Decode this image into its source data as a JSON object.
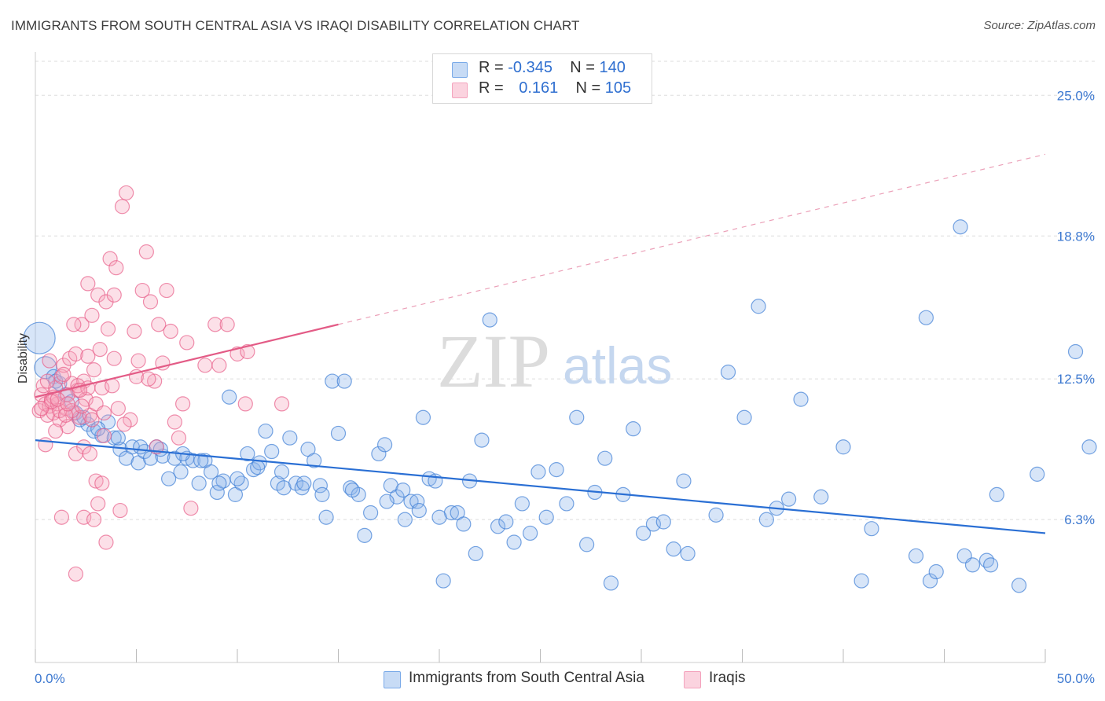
{
  "header": {
    "title": "IMMIGRANTS FROM SOUTH CENTRAL ASIA VS IRAQI DISABILITY CORRELATION CHART",
    "source": "Source: ZipAtlas.com"
  },
  "watermark": {
    "zip": "ZIP",
    "atlas": "atlas"
  },
  "legend": {
    "rows": [
      {
        "r_label": "R = ",
        "r_value": "-0.345",
        "n_label": "N = ",
        "n_value": "140",
        "color": "#7aaae8"
      },
      {
        "r_label": "R = ",
        "r_value": "0.161",
        "n_label": "N = ",
        "n_value": "105",
        "color": "#f4a3bd"
      }
    ]
  },
  "bottom_legend": [
    {
      "label": "Immigrants from South Central Asia",
      "color": "#a8c6f0"
    },
    {
      "label": "Iraqis",
      "color": "#f7bfd0"
    }
  ],
  "chart_data": {
    "type": "scatter",
    "title": "IMMIGRANTS FROM SOUTH CENTRAL ASIA VS IRAQI DISABILITY CORRELATION CHART",
    "xlabel": "",
    "ylabel": "Disability",
    "xlim": [
      0,
      50
    ],
    "ylim": [
      0,
      26.5
    ],
    "x_tick_labels": [
      "0.0%",
      "50.0%"
    ],
    "y_ticks": [
      6.3,
      12.5,
      18.8,
      25.0
    ],
    "y_tick_labels": [
      "6.3%",
      "12.5%",
      "18.8%",
      "25.0%"
    ],
    "grid": true,
    "legend_position": "top-center",
    "series": [
      {
        "name": "Immigrants from South Central Asia",
        "color": "#3f7fd6",
        "fill": "rgba(140,180,235,0.35)",
        "trend": {
          "x0": 0,
          "y0": 9.8,
          "x1": 50,
          "y1": 5.7,
          "dashed_from": null
        },
        "points": [
          [
            0.2,
            14.3
          ],
          [
            0.5,
            13.0
          ],
          [
            0.9,
            12.6
          ],
          [
            1.2,
            12.3
          ],
          [
            1.5,
            11.8
          ],
          [
            1.8,
            11.5
          ],
          [
            2.0,
            11.0
          ],
          [
            2.2,
            10.7
          ],
          [
            2.6,
            10.5
          ],
          [
            2.9,
            10.2
          ],
          [
            3.3,
            10.0
          ],
          [
            3.6,
            10.6
          ],
          [
            3.9,
            9.9
          ],
          [
            4.2,
            9.4
          ],
          [
            4.5,
            9.0
          ],
          [
            4.8,
            9.5
          ],
          [
            5.1,
            8.8
          ],
          [
            5.4,
            9.3
          ],
          [
            5.7,
            9.0
          ],
          [
            6.0,
            9.5
          ],
          [
            6.3,
            9.1
          ],
          [
            6.6,
            8.1
          ],
          [
            6.9,
            9.0
          ],
          [
            7.2,
            8.4
          ],
          [
            7.5,
            9.0
          ],
          [
            7.8,
            8.9
          ],
          [
            8.1,
            7.9
          ],
          [
            8.4,
            8.9
          ],
          [
            8.7,
            8.4
          ],
          [
            9.0,
            7.5
          ],
          [
            9.3,
            8.0
          ],
          [
            9.6,
            11.7
          ],
          [
            9.9,
            7.4
          ],
          [
            10.2,
            7.9
          ],
          [
            10.5,
            9.2
          ],
          [
            10.8,
            8.5
          ],
          [
            11.1,
            8.8
          ],
          [
            11.4,
            10.2
          ],
          [
            11.7,
            9.3
          ],
          [
            12.0,
            7.9
          ],
          [
            12.3,
            7.7
          ],
          [
            12.6,
            9.9
          ],
          [
            12.9,
            7.9
          ],
          [
            13.2,
            7.7
          ],
          [
            13.5,
            9.4
          ],
          [
            13.8,
            8.9
          ],
          [
            14.1,
            7.8
          ],
          [
            14.4,
            6.4
          ],
          [
            14.7,
            12.4
          ],
          [
            15.0,
            10.1
          ],
          [
            15.3,
            12.4
          ],
          [
            15.6,
            7.7
          ],
          [
            16.0,
            7.4
          ],
          [
            16.3,
            5.6
          ],
          [
            16.6,
            6.6
          ],
          [
            17.0,
            9.2
          ],
          [
            17.3,
            9.6
          ],
          [
            17.6,
            7.8
          ],
          [
            17.9,
            7.3
          ],
          [
            18.3,
            6.3
          ],
          [
            18.6,
            7.1
          ],
          [
            18.9,
            7.1
          ],
          [
            19.2,
            10.8
          ],
          [
            19.5,
            8.1
          ],
          [
            19.8,
            8.0
          ],
          [
            20.2,
            3.6
          ],
          [
            20.6,
            6.6
          ],
          [
            20.9,
            6.6
          ],
          [
            21.2,
            6.1
          ],
          [
            21.5,
            8.0
          ],
          [
            21.8,
            4.8
          ],
          [
            22.1,
            9.8
          ],
          [
            22.5,
            15.1
          ],
          [
            22.9,
            6.0
          ],
          [
            23.3,
            6.2
          ],
          [
            23.7,
            5.3
          ],
          [
            24.1,
            7.0
          ],
          [
            24.5,
            5.7
          ],
          [
            24.9,
            8.4
          ],
          [
            25.3,
            6.4
          ],
          [
            25.8,
            8.5
          ],
          [
            26.3,
            7.0
          ],
          [
            26.8,
            10.8
          ],
          [
            27.3,
            5.2
          ],
          [
            27.7,
            7.5
          ],
          [
            28.2,
            9.0
          ],
          [
            28.5,
            3.5
          ],
          [
            29.1,
            7.4
          ],
          [
            29.6,
            10.3
          ],
          [
            30.1,
            5.7
          ],
          [
            30.6,
            6.1
          ],
          [
            31.1,
            6.2
          ],
          [
            31.6,
            5.0
          ],
          [
            32.1,
            8.0
          ],
          [
            32.3,
            4.8
          ],
          [
            33.7,
            6.5
          ],
          [
            34.3,
            12.8
          ],
          [
            35.1,
            10.8
          ],
          [
            35.8,
            15.7
          ],
          [
            36.2,
            6.3
          ],
          [
            36.7,
            6.8
          ],
          [
            37.3,
            7.2
          ],
          [
            37.9,
            11.6
          ],
          [
            38.9,
            7.3
          ],
          [
            40.0,
            9.5
          ],
          [
            40.9,
            3.6
          ],
          [
            41.4,
            5.9
          ],
          [
            43.6,
            4.7
          ],
          [
            44.1,
            15.2
          ],
          [
            44.3,
            3.6
          ],
          [
            44.6,
            4.0
          ],
          [
            45.8,
            19.2
          ],
          [
            46.0,
            4.7
          ],
          [
            46.4,
            4.3
          ],
          [
            47.1,
            4.5
          ],
          [
            47.3,
            4.3
          ],
          [
            47.6,
            7.4
          ],
          [
            48.7,
            3.4
          ],
          [
            49.6,
            8.3
          ],
          [
            51.5,
            13.7
          ],
          [
            52.3,
            9.5
          ],
          [
            1.0,
            12.4
          ],
          [
            2.4,
            10.8
          ],
          [
            3.1,
            10.3
          ],
          [
            4.1,
            9.9
          ],
          [
            5.2,
            9.5
          ],
          [
            6.2,
            9.4
          ],
          [
            7.3,
            9.2
          ],
          [
            8.2,
            8.9
          ],
          [
            9.1,
            7.9
          ],
          [
            10.0,
            8.1
          ],
          [
            11.0,
            8.6
          ],
          [
            12.2,
            8.4
          ],
          [
            13.3,
            7.9
          ],
          [
            14.2,
            7.4
          ],
          [
            15.7,
            7.6
          ],
          [
            17.4,
            7.1
          ],
          [
            18.2,
            7.6
          ],
          [
            19.0,
            6.7
          ],
          [
            20.0,
            6.4
          ]
        ],
        "sizes_note": "larger circles at x≈0.2 and x≈0.5"
      },
      {
        "name": "Iraqis",
        "color": "#e8608a",
        "fill": "rgba(245,165,190,0.35)",
        "trend": {
          "x0": 0,
          "y0": 11.7,
          "x1": 15,
          "y1": 14.9,
          "dashed_to_x": 50,
          "dashed_to_y": 22.4
        },
        "points": [
          [
            0.2,
            11.1
          ],
          [
            0.3,
            11.8
          ],
          [
            0.4,
            12.2
          ],
          [
            0.5,
            11.4
          ],
          [
            0.6,
            10.9
          ],
          [
            0.7,
            11.3
          ],
          [
            0.8,
            11.6
          ],
          [
            0.9,
            11.0
          ],
          [
            1.0,
            12.1
          ],
          [
            1.1,
            11.4
          ],
          [
            1.2,
            10.7
          ],
          [
            1.3,
            12.6
          ],
          [
            1.4,
            13.1
          ],
          [
            1.5,
            11.2
          ],
          [
            1.6,
            10.4
          ],
          [
            1.7,
            13.4
          ],
          [
            1.8,
            12.3
          ],
          [
            1.9,
            11.0
          ],
          [
            2.0,
            13.6
          ],
          [
            2.1,
            12.0
          ],
          [
            2.2,
            10.8
          ],
          [
            2.3,
            14.9
          ],
          [
            2.4,
            12.4
          ],
          [
            2.5,
            11.6
          ],
          [
            2.6,
            13.5
          ],
          [
            2.7,
            10.9
          ],
          [
            2.8,
            15.3
          ],
          [
            2.9,
            12.9
          ],
          [
            3.0,
            11.4
          ],
          [
            3.1,
            16.2
          ],
          [
            3.2,
            13.8
          ],
          [
            3.3,
            12.1
          ],
          [
            3.4,
            10.0
          ],
          [
            3.5,
            15.9
          ],
          [
            3.6,
            14.7
          ],
          [
            3.7,
            17.8
          ],
          [
            3.8,
            12.2
          ],
          [
            3.9,
            13.4
          ],
          [
            4.0,
            17.4
          ],
          [
            4.1,
            11.2
          ],
          [
            4.3,
            20.1
          ],
          [
            4.5,
            20.7
          ],
          [
            4.7,
            10.7
          ],
          [
            4.9,
            14.6
          ],
          [
            5.1,
            13.3
          ],
          [
            5.3,
            16.4
          ],
          [
            5.5,
            18.1
          ],
          [
            5.7,
            15.9
          ],
          [
            5.9,
            12.4
          ],
          [
            6.1,
            14.9
          ],
          [
            6.3,
            13.2
          ],
          [
            6.5,
            16.4
          ],
          [
            6.7,
            14.6
          ],
          [
            6.9,
            10.6
          ],
          [
            7.1,
            9.9
          ],
          [
            7.3,
            11.4
          ],
          [
            7.5,
            14.1
          ],
          [
            7.7,
            6.8
          ],
          [
            8.4,
            13.1
          ],
          [
            8.9,
            14.9
          ],
          [
            9.1,
            13.1
          ],
          [
            9.5,
            14.9
          ],
          [
            10.0,
            13.6
          ],
          [
            10.4,
            11.4
          ],
          [
            10.5,
            13.7
          ],
          [
            12.2,
            11.4
          ],
          [
            0.3,
            11.2
          ],
          [
            0.6,
            12.4
          ],
          [
            0.9,
            11.7
          ],
          [
            1.2,
            11.1
          ],
          [
            1.4,
            12.7
          ],
          [
            1.6,
            11.8
          ],
          [
            1.8,
            11.1
          ],
          [
            2.1,
            12.2
          ],
          [
            2.3,
            11.3
          ],
          [
            2.6,
            12.1
          ],
          [
            0.5,
            9.6
          ],
          [
            1.0,
            10.2
          ],
          [
            1.5,
            10.9
          ],
          [
            2.0,
            9.2
          ],
          [
            2.4,
            9.5
          ],
          [
            2.7,
            9.2
          ],
          [
            3.0,
            8.0
          ],
          [
            3.3,
            7.9
          ],
          [
            2.4,
            6.4
          ],
          [
            3.1,
            7.0
          ],
          [
            2.9,
            6.3
          ],
          [
            3.5,
            5.3
          ],
          [
            4.2,
            6.7
          ],
          [
            2.0,
            3.9
          ],
          [
            1.3,
            6.4
          ],
          [
            0.8,
            11.5
          ],
          [
            1.1,
            11.6
          ],
          [
            1.6,
            11.4
          ],
          [
            2.2,
            12.0
          ],
          [
            2.8,
            10.7
          ],
          [
            3.4,
            11.0
          ],
          [
            4.4,
            10.5
          ],
          [
            5.0,
            12.6
          ],
          [
            5.6,
            12.5
          ],
          [
            6.0,
            9.5
          ],
          [
            0.7,
            13.3
          ],
          [
            1.9,
            14.9
          ],
          [
            2.6,
            16.7
          ],
          [
            3.9,
            16.2
          ]
        ]
      }
    ]
  }
}
